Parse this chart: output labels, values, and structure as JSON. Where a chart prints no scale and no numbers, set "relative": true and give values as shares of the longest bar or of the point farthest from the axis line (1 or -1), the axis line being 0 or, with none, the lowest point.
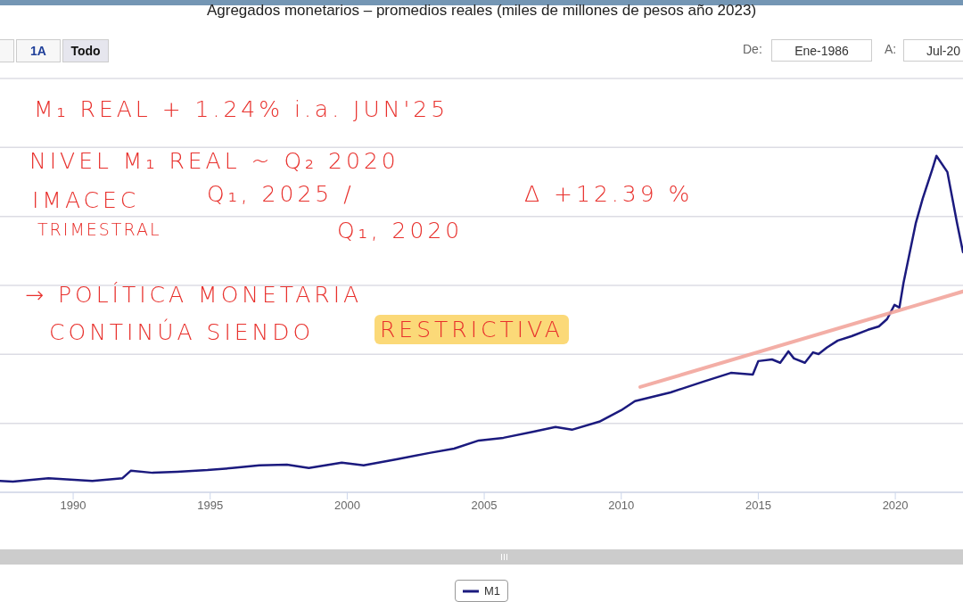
{
  "chart_data": {
    "type": "line",
    "title": "Agregados monetarios – promedios reales (miles de millones de pesos año 2023)",
    "relative": true,
    "x": [
      1987.33,
      1987.8,
      1989.1,
      1990.7,
      1991.8,
      1992.1,
      1992.9,
      1993.8,
      1994.9,
      1995.8,
      1996.8,
      1997.8,
      1998.6,
      1999.8,
      2000.6,
      2001.8,
      2003.0,
      2003.9,
      2004.8,
      2005.7,
      2006.8,
      2007.6,
      2008.2,
      2009.2,
      2010.0,
      2010.5,
      2011.8,
      2013.0,
      2014.0,
      2014.8,
      2015.0,
      2015.5,
      2015.8,
      2016.1,
      2016.3,
      2016.7,
      2017.0,
      2017.2,
      2017.5,
      2017.9,
      2018.4,
      2019.0,
      2019.4,
      2019.7,
      2019.97,
      2020.15,
      2020.3,
      2020.75,
      2021.0,
      2021.35,
      2021.5,
      2021.9,
      2022.25,
      2022.47
    ],
    "series": [
      {
        "name": "M1",
        "color": "#1b1a7e",
        "values": [
          0.034,
          0.032,
          0.042,
          0.034,
          0.042,
          0.064,
          0.058,
          0.061,
          0.066,
          0.072,
          0.08,
          0.082,
          0.072,
          0.088,
          0.08,
          0.098,
          0.117,
          0.13,
          0.154,
          0.162,
          0.18,
          0.194,
          0.186,
          0.21,
          0.244,
          0.271,
          0.297,
          0.329,
          0.355,
          0.35,
          0.39,
          0.395,
          0.385,
          0.419,
          0.398,
          0.385,
          0.416,
          0.411,
          0.43,
          0.451,
          0.464,
          0.483,
          0.493,
          0.515,
          0.557,
          0.549,
          0.623,
          0.801,
          0.873,
          0.96,
          1,
          0.952,
          0.801,
          0.714
        ]
      },
      {
        "type": "line",
        "color": "#f2a59c",
        "x": [
          2010.69,
          2022.47
        ],
        "values": [
          0.313,
          0.597
        ]
      }
    ],
    "xlim": [
      1987.33,
      2022.47
    ],
    "xticks": [
      1990,
      1995,
      2000,
      2005,
      2010,
      2015,
      2020
    ],
    "grid": "y",
    "legend": "bottom",
    "marker": "none",
    "annotations": [
      "1A",
      "Todo",
      "De:",
      "Ene-1986",
      "A:",
      "Jul-20",
      "M₁ REAL   + 1.24%  i.a.  JUN'25",
      "NIVEL  M₁ REAL  ~  Q₂ 2020",
      "IMACEC",
      "TRIMESTRAL",
      "Q₁, 2025 /",
      "Q₁, 2020",
      "Δ +12.39 %",
      "→  POLÍTICA  MONETARIA",
      "CONTINÚA  SIENDO",
      "RESTRICTIVA"
    ]
  }
}
